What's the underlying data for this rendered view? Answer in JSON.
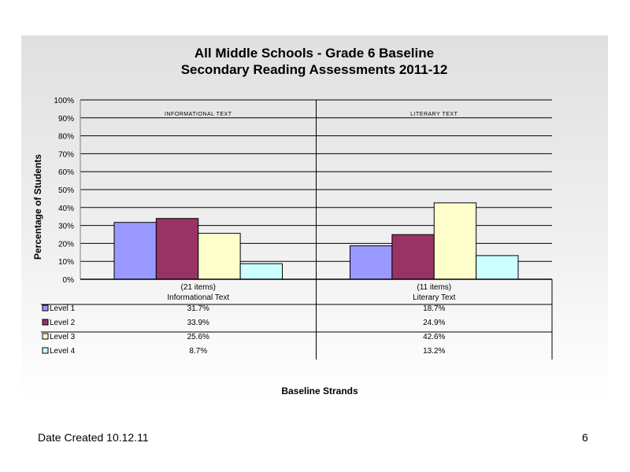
{
  "chart_data": {
    "type": "bar",
    "title": [
      "All Middle Schools - Grade 6 Baseline",
      "Secondary Reading Assessments 2011-12"
    ],
    "ylabel": "Percentage of Students",
    "xlabel": "Baseline Strands",
    "ylim": [
      0,
      100
    ],
    "y_ticks": [
      "0%",
      "10%",
      "20%",
      "30%",
      "40%",
      "50%",
      "60%",
      "70%",
      "80%",
      "90%",
      "100%"
    ],
    "grid": true,
    "categories": [
      {
        "items": "(21 items)",
        "name": "Informational Text",
        "tag": "INFORMATIONAL TEXT"
      },
      {
        "items": "(11 items)",
        "name": "Literary Text",
        "tag": "LITERARY TEXT"
      }
    ],
    "series": [
      {
        "name": "Level 1",
        "color": "#9999ff",
        "values": [
          31.7,
          18.7
        ],
        "labels": [
          "31.7%",
          "18.7%"
        ]
      },
      {
        "name": "Level 2",
        "color": "#993366",
        "values": [
          33.9,
          24.9
        ],
        "labels": [
          "33.9%",
          "24.9%"
        ]
      },
      {
        "name": "Level 3",
        "color": "#ffffcc",
        "values": [
          25.6,
          42.6
        ],
        "labels": [
          "25.6%",
          "42.6%"
        ]
      },
      {
        "name": "Level 4",
        "color": "#ccffff",
        "values": [
          8.7,
          13.2
        ],
        "labels": [
          "8.7%",
          "13.2%"
        ]
      }
    ],
    "legend": "data-table-left"
  },
  "footer": {
    "date": "Date Created  10.12.11",
    "page": "6"
  }
}
